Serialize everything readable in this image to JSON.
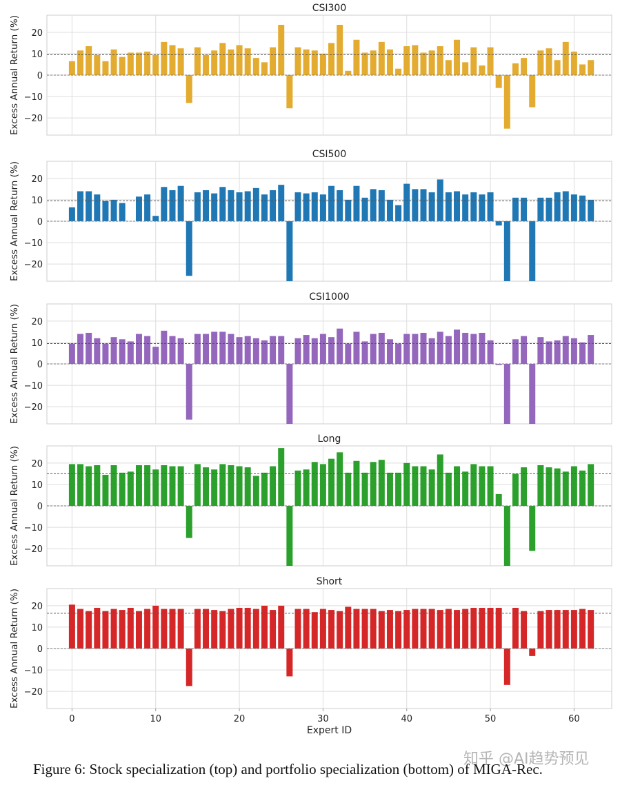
{
  "figure_caption": "Figure 6: Stock specialization (top) and portfolio specialization (bottom) of MIGA-Rec.",
  "watermark": "知乎 @AI趋势预见",
  "chart_data": {
    "type": "bar",
    "xlabel": "Expert ID",
    "ylabel": "Excess Annual Return (%)",
    "xlim": [
      -3,
      64.5
    ],
    "ylim": [
      -28,
      28
    ],
    "xticks": [
      0,
      10,
      20,
      30,
      40,
      50,
      60
    ],
    "yticks": [
      -20,
      -10,
      0,
      10,
      20
    ],
    "grid": true,
    "x": [
      0,
      1,
      2,
      3,
      4,
      5,
      6,
      7,
      8,
      9,
      10,
      11,
      12,
      13,
      14,
      15,
      16,
      17,
      18,
      19,
      20,
      21,
      22,
      23,
      24,
      25,
      26,
      27,
      28,
      29,
      30,
      31,
      32,
      33,
      34,
      35,
      36,
      37,
      38,
      39,
      40,
      41,
      42,
      43,
      44,
      45,
      46,
      47,
      48,
      49,
      50,
      51,
      52,
      53,
      54,
      55,
      56,
      57,
      58,
      59,
      60,
      61,
      62
    ],
    "panels": [
      {
        "title": "CSI300",
        "color": "#e3ac30",
        "reference_line": 9.5,
        "values": [
          6.5,
          11.5,
          13.5,
          9.5,
          6.5,
          12,
          8.5,
          10.5,
          10.5,
          11,
          9.5,
          15.5,
          14,
          12.5,
          -13,
          13,
          9.5,
          11.5,
          15,
          12,
          14,
          12.5,
          8,
          6,
          13,
          23.5,
          -15.5,
          13,
          12,
          11.5,
          10,
          15,
          23.5,
          2,
          16.5,
          10.5,
          11.5,
          15.5,
          12,
          3,
          13.5,
          14,
          10.5,
          11.5,
          13.5,
          7,
          16.5,
          6,
          13,
          4.5,
          13,
          -6,
          -25,
          5.5,
          8,
          -15,
          11.5,
          12.5,
          7,
          15.5,
          11,
          5,
          7
        ]
      },
      {
        "title": "CSI500",
        "color": "#1f77b4",
        "reference_line": 9.5,
        "values": [
          6.5,
          14,
          14,
          12.5,
          9.5,
          10,
          8.5,
          0,
          11.5,
          12.5,
          2.5,
          16,
          14.5,
          16.5,
          -25.5,
          13.5,
          14.5,
          13,
          16,
          14.5,
          13.5,
          14,
          15.5,
          12.5,
          14.5,
          17,
          -28,
          13.5,
          13,
          13.5,
          12.5,
          16.5,
          14.5,
          10,
          16.5,
          11,
          15,
          14.5,
          10,
          7.5,
          17.5,
          15,
          15,
          13.5,
          19.5,
          13.5,
          14,
          12.5,
          13.5,
          12.5,
          13.5,
          -2,
          -28,
          11,
          11,
          -28,
          11,
          11,
          13.5,
          14,
          12.5,
          12,
          10
        ]
      },
      {
        "title": "CSI1000",
        "color": "#9467bd",
        "reference_line": 9.5,
        "values": [
          9.5,
          14,
          14.5,
          12,
          9.5,
          12.5,
          11.5,
          10.5,
          14,
          13,
          8,
          15.5,
          13,
          12,
          -26,
          14,
          14,
          15,
          15,
          14,
          12.5,
          13,
          12,
          11,
          13,
          13,
          -28,
          12,
          13.5,
          12,
          14,
          12.5,
          16.5,
          9.5,
          15,
          10.5,
          14,
          14.5,
          11.5,
          9.5,
          14,
          14,
          14.5,
          12,
          15,
          13,
          16,
          14.5,
          14,
          14.5,
          11,
          -0.5,
          -28,
          11.5,
          13,
          -28,
          12.5,
          10.5,
          11,
          13,
          12,
          10,
          13.5
        ]
      },
      {
        "title": "Long",
        "color": "#2ca02c",
        "reference_line": 15,
        "values": [
          19.5,
          19.5,
          18.5,
          19,
          14.5,
          19,
          15.5,
          16,
          19,
          19,
          17,
          19,
          18.5,
          18.5,
          -15,
          19.5,
          18,
          17,
          19.5,
          19,
          18.5,
          18,
          14,
          15.5,
          18.5,
          27,
          -28,
          16.5,
          17,
          20.5,
          19.5,
          22,
          25,
          15.5,
          21,
          15.5,
          20.5,
          21.5,
          15.5,
          15.5,
          20,
          18.5,
          18.5,
          17,
          24,
          15.5,
          18.5,
          16,
          19.5,
          18.5,
          18.5,
          5.5,
          -28,
          15,
          18,
          -21,
          19,
          18,
          17.5,
          16,
          18.5,
          16.5,
          19.5
        ]
      },
      {
        "title": "Short",
        "color": "#d62728",
        "reference_line": 16.5,
        "values": [
          20.5,
          18.5,
          17.5,
          19,
          17.5,
          18.5,
          18,
          19,
          17.5,
          18.5,
          20,
          18.5,
          18.5,
          18.5,
          -17.5,
          18.5,
          18.5,
          18,
          17.5,
          18.5,
          19,
          19,
          18.5,
          20,
          18,
          20,
          -13,
          18.5,
          18.5,
          17,
          18.5,
          18,
          17.5,
          19.5,
          18.5,
          18.5,
          18.5,
          17.5,
          18,
          17.5,
          18,
          18.5,
          18.5,
          18.5,
          18,
          18.5,
          18,
          18.5,
          19,
          19,
          19,
          19,
          -17,
          19,
          17.5,
          -3.5,
          17.5,
          18,
          18,
          18,
          18,
          18.5,
          18
        ]
      }
    ]
  }
}
